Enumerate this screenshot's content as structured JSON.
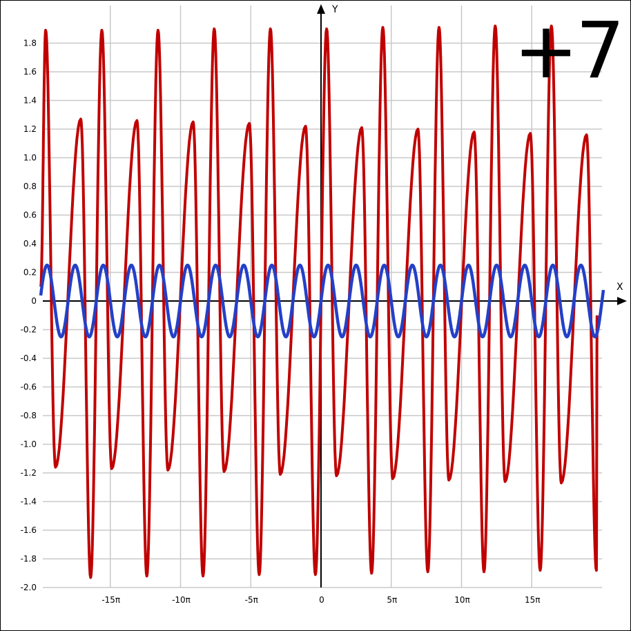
{
  "badge": "+7",
  "colors": {
    "series1": "#c00000",
    "series2": "#2340c8",
    "grid": "#c8c8c8",
    "axis": "#000000"
  },
  "chart_data": {
    "type": "line",
    "xlabel": "X",
    "ylabel": "Y",
    "xlim_pi": [
      -20,
      20
    ],
    "ylim": [
      -2.0,
      1.93
    ],
    "x_ticks": [
      {
        "value_pi": -15,
        "label": "-15π"
      },
      {
        "value_pi": -10,
        "label": "-10π"
      },
      {
        "value_pi": -5,
        "label": "-5π"
      },
      {
        "value_pi": 0,
        "label": "0"
      },
      {
        "value_pi": 5,
        "label": "5π"
      },
      {
        "value_pi": 10,
        "label": "10π"
      },
      {
        "value_pi": 15,
        "label": "15π"
      }
    ],
    "y_ticks": [
      {
        "value": 1.8,
        "label": "1.8"
      },
      {
        "value": 1.6,
        "label": "1.6"
      },
      {
        "value": 1.4,
        "label": "1.4"
      },
      {
        "value": 1.2,
        "label": "1.2"
      },
      {
        "value": 1.0,
        "label": "1.0"
      },
      {
        "value": 0.8,
        "label": "0.8"
      },
      {
        "value": 0.6,
        "label": "0.6"
      },
      {
        "value": 0.4,
        "label": "0.4"
      },
      {
        "value": 0.2,
        "label": "0.2"
      },
      {
        "value": 0,
        "label": "0"
      },
      {
        "value": -0.2,
        "label": "-0.2"
      },
      {
        "value": -0.4,
        "label": "-0.4"
      },
      {
        "value": -0.6,
        "label": "-0.6"
      },
      {
        "value": -0.8,
        "label": "-0.8"
      },
      {
        "value": -1.0,
        "label": "-1.0"
      },
      {
        "value": -1.2,
        "label": "-1.2"
      },
      {
        "value": -1.4,
        "label": "-1.4"
      },
      {
        "value": -1.6,
        "label": "-1.6"
      },
      {
        "value": -1.8,
        "label": "-1.8"
      },
      {
        "value": -2.0,
        "label": "-2.0"
      }
    ],
    "grid": true,
    "series": [
      {
        "color": "#c00000",
        "peaks": [
          {
            "x_pi": -19.6,
            "y": 1.89
          },
          {
            "x_pi": -17.1,
            "y": 1.27
          },
          {
            "x_pi": -15.6,
            "y": 1.89
          },
          {
            "x_pi": -13.1,
            "y": 1.26
          },
          {
            "x_pi": -11.6,
            "y": 1.89
          },
          {
            "x_pi": -9.1,
            "y": 1.25
          },
          {
            "x_pi": -7.6,
            "y": 1.9
          },
          {
            "x_pi": -5.1,
            "y": 1.24
          },
          {
            "x_pi": -3.6,
            "y": 1.9
          },
          {
            "x_pi": -1.1,
            "y": 1.22
          },
          {
            "x_pi": 0.4,
            "y": 1.9
          },
          {
            "x_pi": 2.9,
            "y": 1.21
          },
          {
            "x_pi": 4.4,
            "y": 1.91
          },
          {
            "x_pi": 6.9,
            "y": 1.2
          },
          {
            "x_pi": 8.4,
            "y": 1.91
          },
          {
            "x_pi": 10.9,
            "y": 1.18
          },
          {
            "x_pi": 12.4,
            "y": 1.92
          },
          {
            "x_pi": 14.9,
            "y": 1.17
          },
          {
            "x_pi": 16.4,
            "y": 1.92
          },
          {
            "x_pi": 18.9,
            "y": 1.16
          }
        ],
        "troughs": [
          {
            "x_pi": -18.9,
            "y": -1.16
          },
          {
            "x_pi": -16.4,
            "y": -1.93
          },
          {
            "x_pi": -14.9,
            "y": -1.17
          },
          {
            "x_pi": -12.4,
            "y": -1.92
          },
          {
            "x_pi": -10.9,
            "y": -1.18
          },
          {
            "x_pi": -8.4,
            "y": -1.92
          },
          {
            "x_pi": -6.9,
            "y": -1.19
          },
          {
            "x_pi": -4.4,
            "y": -1.91
          },
          {
            "x_pi": -2.9,
            "y": -1.21
          },
          {
            "x_pi": -0.4,
            "y": -1.91
          },
          {
            "x_pi": 1.1,
            "y": -1.22
          },
          {
            "x_pi": 3.6,
            "y": -1.9
          },
          {
            "x_pi": 5.1,
            "y": -1.24
          },
          {
            "x_pi": 7.6,
            "y": -1.89
          },
          {
            "x_pi": 9.1,
            "y": -1.25
          },
          {
            "x_pi": 11.6,
            "y": -1.89
          },
          {
            "x_pi": 13.1,
            "y": -1.26
          },
          {
            "x_pi": 15.6,
            "y": -1.88
          },
          {
            "x_pi": 17.1,
            "y": -1.27
          },
          {
            "x_pi": 19.6,
            "y": -1.88
          }
        ]
      },
      {
        "color": "#2340c8",
        "amplitude": 0.25,
        "period_pi": 2,
        "peaks_x_pi": [
          -19.5,
          -17.5,
          -15.5,
          -13.5,
          -11.5,
          -9.5,
          -7.5,
          -5.5,
          -3.5,
          -1.5,
          0.5,
          2.5,
          4.5,
          6.5,
          8.5,
          10.5,
          12.5,
          14.5,
          16.5,
          18.5
        ]
      }
    ]
  }
}
